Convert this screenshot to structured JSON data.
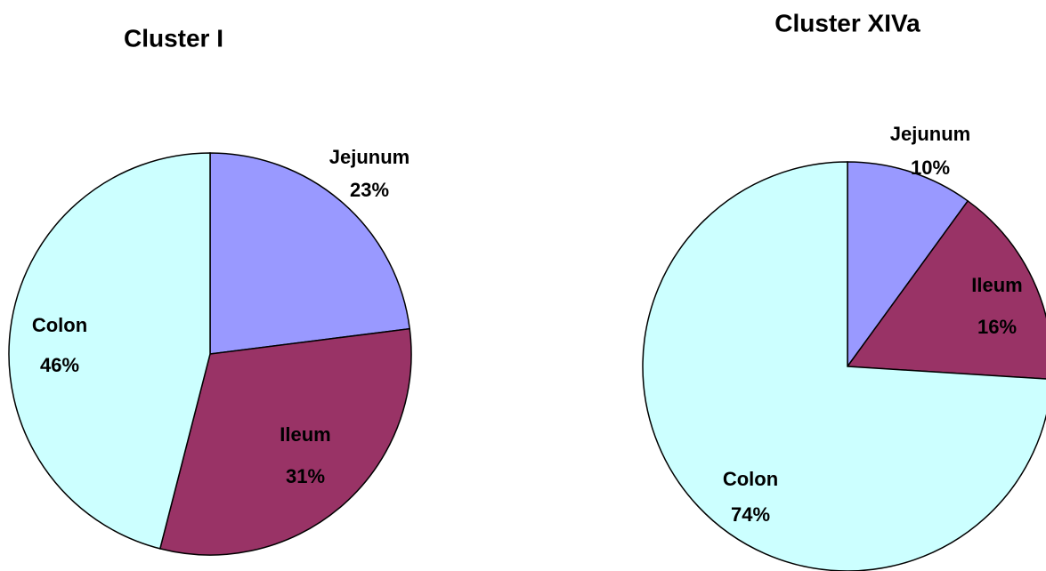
{
  "chart_data": [
    {
      "type": "pie",
      "title": "Cluster I",
      "categories": [
        "Jejunum",
        "Ileum",
        "Colon"
      ],
      "values": [
        23,
        31,
        46
      ],
      "value_labels": [
        "23%",
        "31%",
        "46%"
      ],
      "colors": [
        "#9999ff",
        "#993366",
        "#ccffff"
      ]
    },
    {
      "type": "pie",
      "title": "Cluster XIVa",
      "categories": [
        "Jejunum",
        "Ileum",
        "Colon"
      ],
      "values": [
        10,
        16,
        74
      ],
      "value_labels": [
        "10%",
        "16%",
        "74%"
      ],
      "colors": [
        "#9999ff",
        "#993366",
        "#ccffff"
      ]
    }
  ]
}
